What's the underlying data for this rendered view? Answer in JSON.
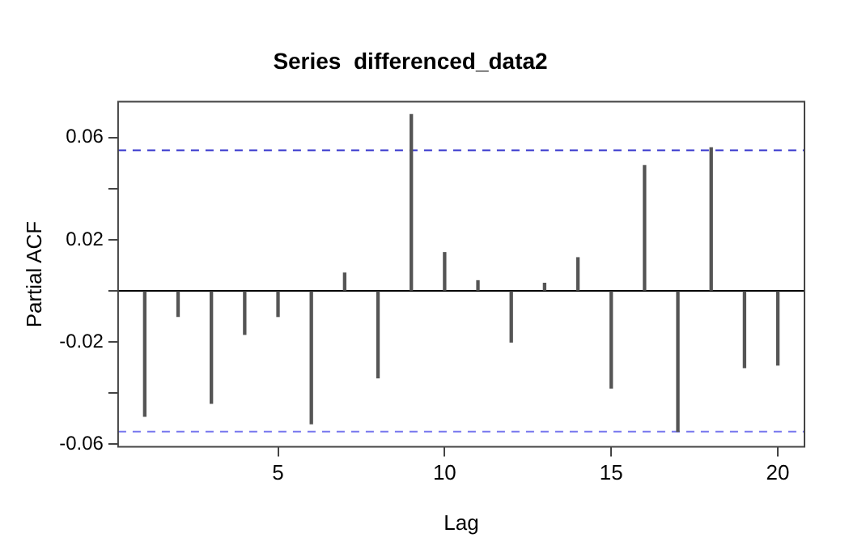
{
  "chart_data": {
    "type": "bar",
    "title": "Series  differenced_data2",
    "xlabel": "Lag",
    "ylabel": "Partial ACF",
    "x": [
      1,
      2,
      3,
      4,
      5,
      6,
      7,
      8,
      9,
      10,
      11,
      12,
      13,
      14,
      15,
      16,
      17,
      18,
      19,
      20
    ],
    "values": [
      -0.049,
      -0.01,
      -0.044,
      -0.017,
      -0.01,
      -0.052,
      0.007,
      -0.034,
      0.069,
      0.015,
      0.004,
      -0.02,
      0.003,
      0.013,
      -0.038,
      0.049,
      -0.055,
      0.056,
      -0.03,
      -0.029
    ],
    "color": "#555555",
    "xlim": [
      0.2,
      20.8
    ],
    "xticks": [
      5,
      10,
      15,
      20
    ],
    "ylim": [
      -0.061,
      0.074
    ],
    "yticks": [
      -0.06,
      {
        "value": -0.04,
        "label": null
      },
      -0.02,
      {
        "value": 0,
        "label": null
      },
      0.02,
      {
        "value": 0.04,
        "label": null
      },
      0.06
    ],
    "ref_lines": [
      {
        "axis": "y",
        "value": 0,
        "color": "#000000",
        "line_style": "solid"
      },
      {
        "axis": "y",
        "value": 0.055,
        "color": "#3333cc",
        "line_style": "dashed"
      },
      {
        "axis": "y",
        "value": -0.055,
        "color": "#7777ee",
        "line_style": "dashed"
      }
    ],
    "grid": false,
    "legend": false
  }
}
